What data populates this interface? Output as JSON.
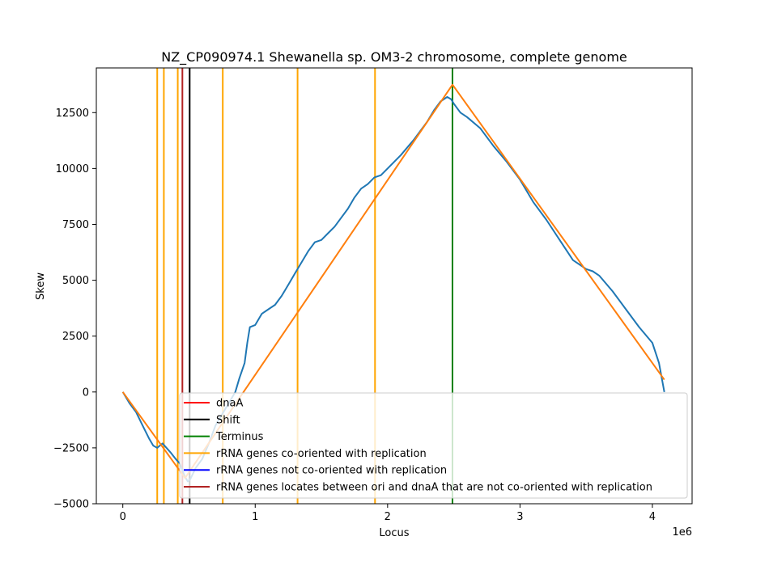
{
  "chart_data": {
    "type": "line",
    "title": "NZ_CP090974.1 Shewanella sp. OM3-2 chromosome, complete genome",
    "xlabel": "Locus",
    "ylabel": "Skew",
    "x_offset_label": "1e6",
    "xlim": [
      -200000,
      4300000
    ],
    "ylim": [
      -5000,
      14500
    ],
    "x_ticks": [
      0,
      1000000,
      2000000,
      3000000,
      4000000
    ],
    "x_tick_labels": [
      "0",
      "1",
      "2",
      "3",
      "4"
    ],
    "y_ticks": [
      -5000,
      -2500,
      0,
      2500,
      5000,
      7500,
      10000,
      12500
    ],
    "y_tick_labels": [
      "−5000",
      "−2500",
      "0",
      "2500",
      "5000",
      "7500",
      "10000",
      "12500"
    ],
    "grid": false,
    "legend_position": "lower right",
    "series": [
      {
        "role": "skew",
        "color": "#1f77b4",
        "x": [
          0,
          50000,
          100000,
          150000,
          200000,
          230000,
          260000,
          300000,
          330000,
          360000,
          400000,
          430000,
          470000,
          490000,
          510000,
          550000,
          600000,
          650000,
          700000,
          750000,
          800000,
          850000,
          880000,
          920000,
          940000,
          960000,
          1000000,
          1050000,
          1100000,
          1150000,
          1200000,
          1250000,
          1300000,
          1350000,
          1400000,
          1450000,
          1500000,
          1550000,
          1600000,
          1650000,
          1700000,
          1750000,
          1800000,
          1850000,
          1900000,
          1950000,
          2000000,
          2100000,
          2200000,
          2300000,
          2350000,
          2400000,
          2450000,
          2480000,
          2500000,
          2550000,
          2600000,
          2700000,
          2800000,
          2900000,
          3000000,
          3100000,
          3200000,
          3300000,
          3400000,
          3500000,
          3550000,
          3600000,
          3700000,
          3800000,
          3900000,
          4000000,
          4050000,
          4090000
        ],
        "y": [
          0,
          -500,
          -900,
          -1500,
          -2100,
          -2400,
          -2500,
          -2300,
          -2500,
          -2700,
          -3000,
          -3200,
          -3800,
          -4000,
          -3900,
          -3400,
          -3000,
          -2300,
          -1500,
          -1000,
          -500,
          0,
          600,
          1300,
          2200,
          2900,
          3000,
          3500,
          3700,
          3900,
          4300,
          4800,
          5300,
          5800,
          6300,
          6700,
          6800,
          7100,
          7400,
          7800,
          8200,
          8700,
          9100,
          9300,
          9600,
          9700,
          10000,
          10600,
          11300,
          12100,
          12600,
          13000,
          13200,
          13100,
          12900,
          12500,
          12300,
          11800,
          11000,
          10300,
          9500,
          8500,
          7700,
          6800,
          5900,
          5500,
          5400,
          5200,
          4500,
          3700,
          2900,
          2200,
          1300,
          0
        ]
      },
      {
        "role": "fit",
        "color": "#ff7f0e",
        "x": [
          0,
          470000,
          2490000,
          4090000
        ],
        "y": [
          0,
          -3850,
          13750,
          550
        ]
      }
    ],
    "vlines": [
      {
        "x": 260000,
        "color": "#ffa500",
        "kind": "rRNA genes co-oriented with replication"
      },
      {
        "x": 310000,
        "color": "#ffa500",
        "kind": "rRNA genes co-oriented with replication"
      },
      {
        "x": 415000,
        "color": "#ffa500",
        "kind": "rRNA genes co-oriented with replication"
      },
      {
        "x": 755000,
        "color": "#ffa500",
        "kind": "rRNA genes co-oriented with replication"
      },
      {
        "x": 1320000,
        "color": "#ffa500",
        "kind": "rRNA genes co-oriented with replication"
      },
      {
        "x": 1905000,
        "color": "#ffa500",
        "kind": "rRNA genes co-oriented with replication"
      },
      {
        "x": 450000,
        "color": "#b22222",
        "kind": "dnaA"
      },
      {
        "x": 505000,
        "color": "#000000",
        "kind": "Shift"
      },
      {
        "x": 2490000,
        "color": "#008000",
        "kind": "Terminus"
      }
    ],
    "legend": [
      {
        "label": "dnaA",
        "color": "#ff0000"
      },
      {
        "label": "Shift",
        "color": "#000000"
      },
      {
        "label": "Terminus",
        "color": "#008000"
      },
      {
        "label": "rRNA genes co-oriented with replication",
        "color": "#ffa500"
      },
      {
        "label": "rRNA genes not co-oriented with replication",
        "color": "#0000ff"
      },
      {
        "label": "rRNA genes locates between ori and dnaA that are not co-oriented with replication",
        "color": "#b22222"
      }
    ]
  }
}
